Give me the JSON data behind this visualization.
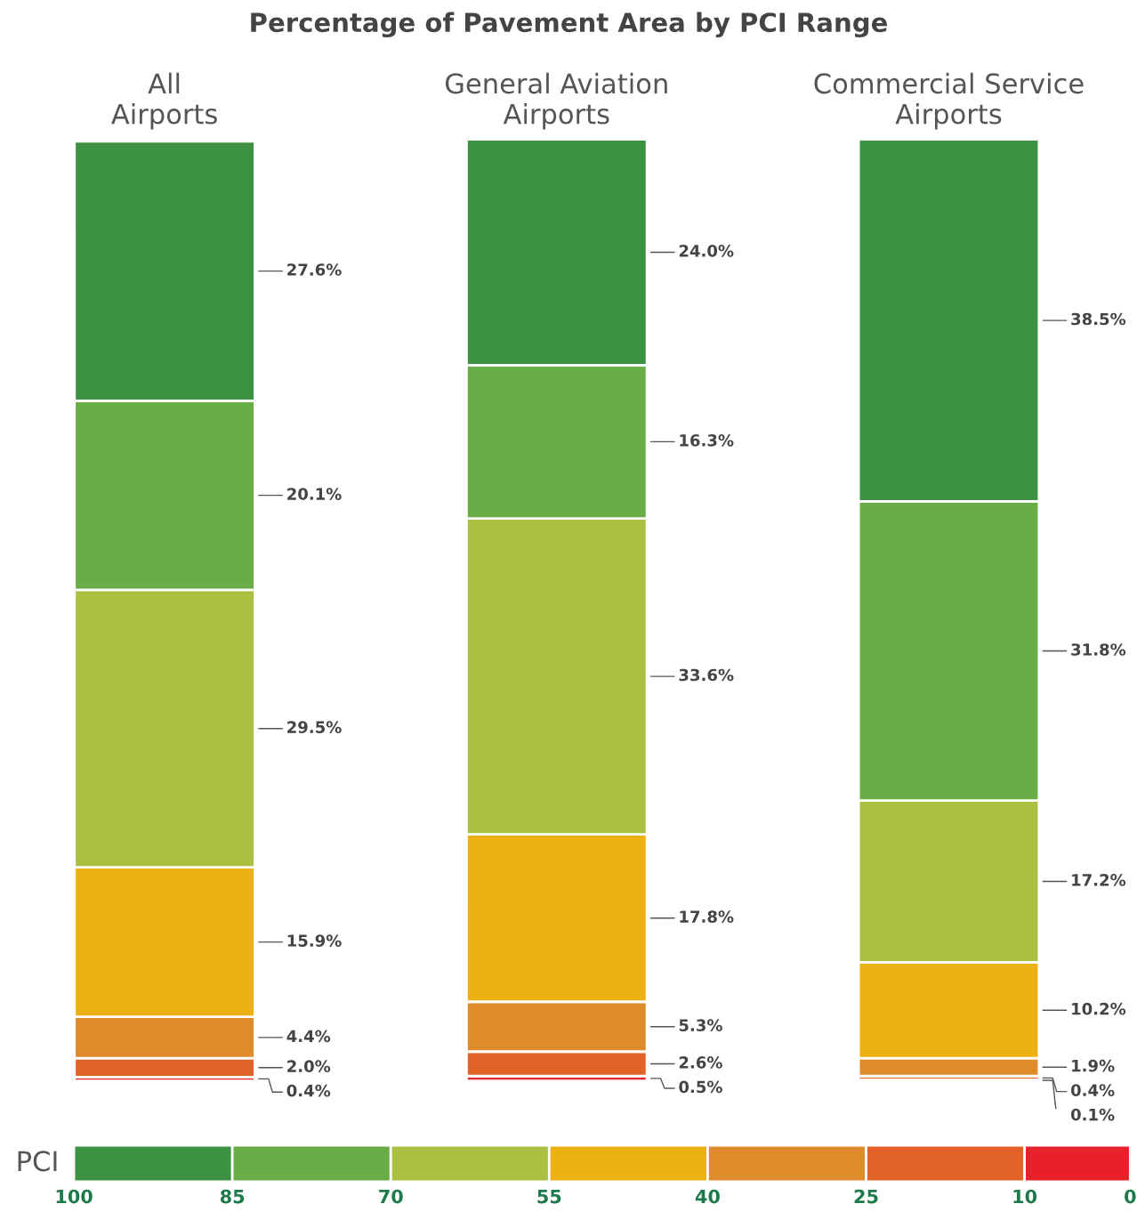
{
  "chart_data": {
    "type": "bar",
    "title": "Percentage of Pavement Area by PCI Range",
    "categories": [
      "All\nAirports",
      "General Aviation\nAirports",
      "Commercial Service\nAirports"
    ],
    "stacked": true,
    "series": [
      {
        "color": "#e8202a",
        "values": [
          0.4,
          0.5,
          0.1
        ],
        "value_labels": [
          "0.4%",
          "0.5%",
          "0.1%"
        ]
      },
      {
        "color": "#e26227",
        "values": [
          2.0,
          2.6,
          0.4
        ],
        "value_labels": [
          "2.0%",
          "2.6%",
          "0.4%"
        ]
      },
      {
        "color": "#de8b2a",
        "values": [
          4.4,
          5.3,
          1.9
        ],
        "value_labels": [
          "4.4%",
          "5.3%",
          "1.9%"
        ]
      },
      {
        "color": "#ecb013",
        "values": [
          15.9,
          17.8,
          10.2
        ],
        "value_labels": [
          "15.9%",
          "17.8%",
          "10.2%"
        ]
      },
      {
        "color": "#abc041",
        "values": [
          29.5,
          33.6,
          17.2
        ],
        "value_labels": [
          "29.5%",
          "33.6%",
          "17.2%"
        ]
      },
      {
        "color": "#6aac45",
        "values": [
          20.1,
          16.3,
          31.8
        ],
        "value_labels": [
          "20.1%",
          "16.3%",
          "31.8%"
        ]
      },
      {
        "color": "#3d9143",
        "values": [
          27.6,
          24.0,
          38.5
        ],
        "value_labels": [
          "27.6%",
          "24.0%",
          "38.5%"
        ]
      }
    ],
    "clabel": "PCI",
    "clim": [
      100,
      0
    ],
    "cticks": [
      100,
      85,
      70,
      55,
      40,
      25,
      10,
      0
    ],
    "grid": false,
    "legend": false
  }
}
